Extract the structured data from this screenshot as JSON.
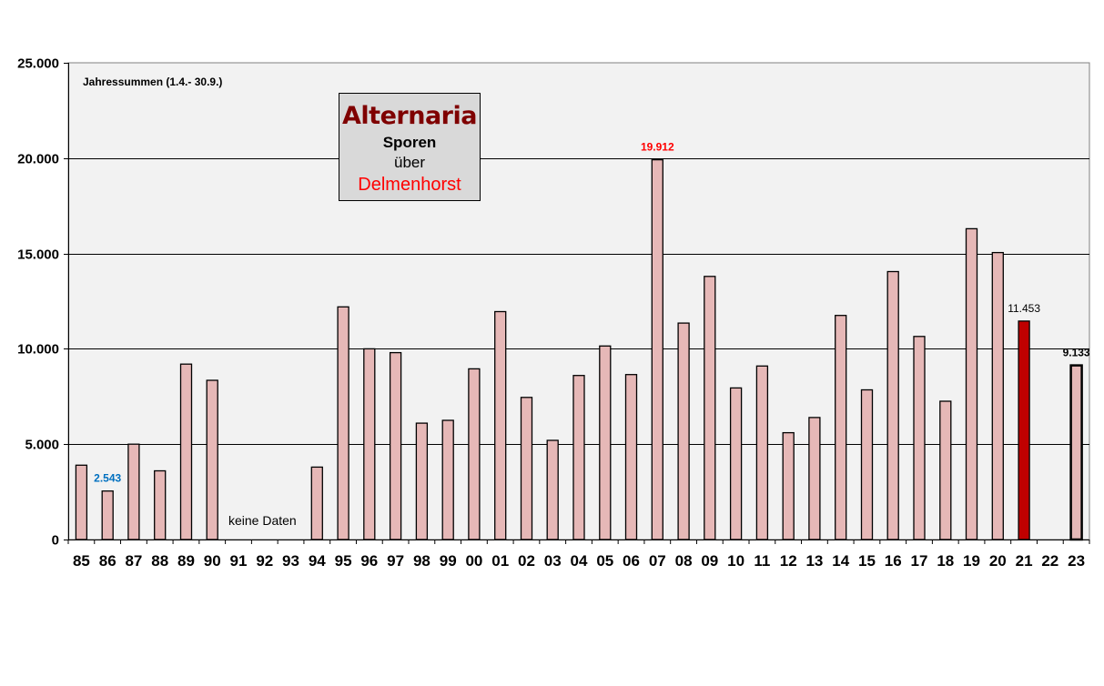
{
  "chart_data": {
    "type": "bar",
    "title": "Alternaria",
    "title_lines": [
      "Sporen",
      "über",
      "Delmenhorst"
    ],
    "subtitle": "Jahressummen  (1.4.- 30.9.)",
    "no_data_note": "keine Daten",
    "categories": [
      "85",
      "86",
      "87",
      "88",
      "89",
      "90",
      "91",
      "92",
      "93",
      "94",
      "95",
      "96",
      "97",
      "98",
      "99",
      "00",
      "01",
      "02",
      "03",
      "04",
      "05",
      "06",
      "07",
      "08",
      "09",
      "10",
      "11",
      "12",
      "13",
      "14",
      "15",
      "16",
      "17",
      "18",
      "19",
      "20",
      "21",
      "22",
      "23"
    ],
    "values": [
      3900,
      2543,
      5000,
      3600,
      9200,
      8350,
      null,
      null,
      null,
      3800,
      12200,
      10000,
      9800,
      6100,
      6250,
      8950,
      11950,
      7450,
      5200,
      8600,
      10150,
      8650,
      19912,
      11350,
      13800,
      7950,
      9100,
      5600,
      6400,
      11750,
      7850,
      14050,
      10650,
      7250,
      16300,
      15050,
      11453,
      null,
      9133
    ],
    "ylim": [
      0,
      25000
    ],
    "yticks": [
      0,
      5000,
      10000,
      15000,
      20000,
      25000
    ],
    "ytick_labels": [
      "0",
      "5.000",
      "10.000",
      "15.000",
      "20.000",
      "25.000"
    ],
    "grid": true,
    "colors": {
      "bar_fill": "#e6b8b7",
      "bar_highlight_fill": "#c00000",
      "plot_background": "#f2f2f2",
      "max_label": "#ff0000",
      "min_label": "#0070c0"
    },
    "highlight_index": 36,
    "bold_outline_index": 38,
    "data_labels": [
      {
        "index": 1,
        "text": "2.543",
        "color": "#0070c0",
        "bold": true
      },
      {
        "index": 22,
        "text": "19.912",
        "color": "#ff0000",
        "bold": true
      },
      {
        "index": 36,
        "text": "11.453",
        "color": "#000000",
        "bold": false
      },
      {
        "index": 38,
        "text": "9.133",
        "color": "#000000",
        "bold": true
      }
    ]
  }
}
